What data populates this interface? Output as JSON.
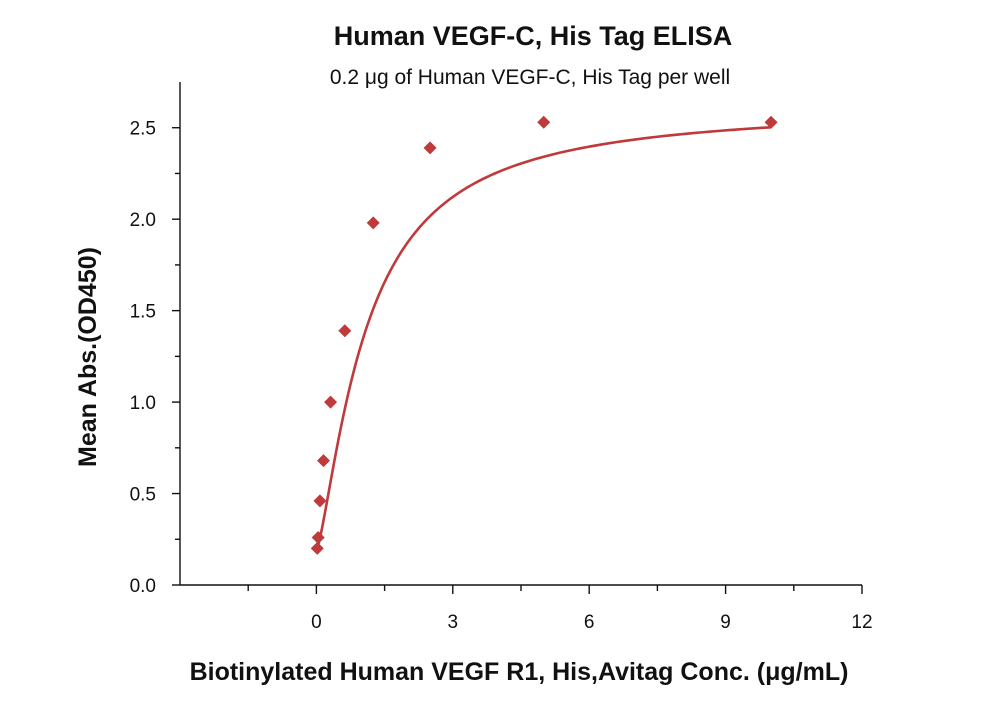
{
  "chart_data": {
    "type": "scatter",
    "title": "Human VEGF-C, His Tag ELISA",
    "subtitle": "0.2 μg of Human VEGF-C, His Tag per well",
    "xlabel": "Biotinylated Human VEGF R1, His,Avitag Conc. (μg/mL)",
    "ylabel": "Mean Abs.(OD450)",
    "xlim": [
      -3,
      12
    ],
    "ylim": [
      0,
      2.75
    ],
    "x_ticks": [
      0,
      3,
      6,
      9,
      12
    ],
    "y_ticks": [
      0.0,
      0.5,
      1.0,
      1.5,
      2.0,
      2.5
    ],
    "x_tick_labels": [
      "0",
      "3",
      "6",
      "9",
      "12"
    ],
    "y_tick_labels": [
      "0.0",
      "0.5",
      "1.0",
      "1.5",
      "2.0",
      "2.5"
    ],
    "grid": false,
    "series": [
      {
        "marker": "diamond",
        "color": "#c0393b",
        "x": [
          0.0195,
          0.039,
          0.078,
          0.156,
          0.3125,
          0.625,
          1.25,
          2.5,
          5,
          10
        ],
        "y": [
          0.2,
          0.26,
          0.46,
          0.68,
          1.0,
          1.39,
          1.98,
          2.39,
          2.53,
          2.53
        ]
      }
    ],
    "fit_curve": {
      "model": "4PL",
      "color": "#c0393b",
      "bottom": 0.19,
      "top": 2.62,
      "ec50": 1.1,
      "hill": 1.35
    }
  }
}
